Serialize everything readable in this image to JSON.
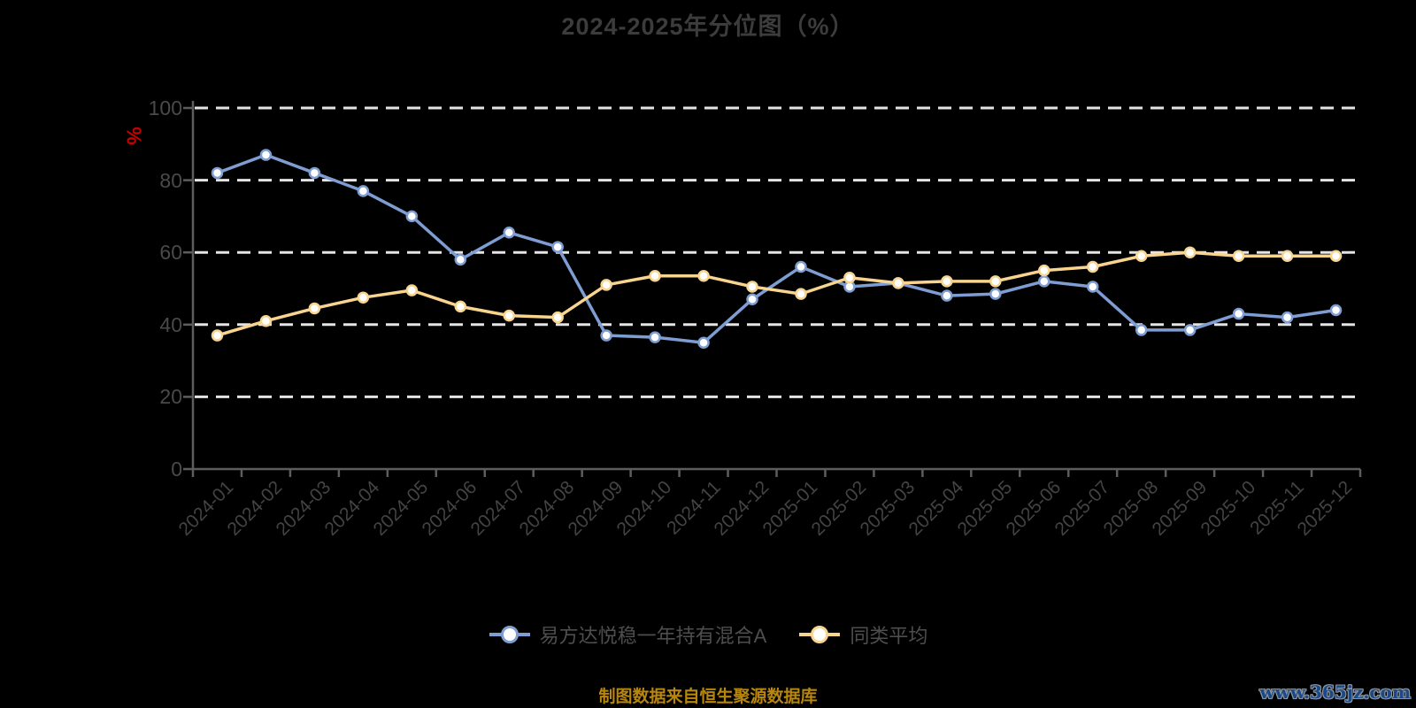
{
  "title": "2024-2025年分位图（%）",
  "y_axis": {
    "name": "%",
    "ticks": [
      0,
      20,
      40,
      60,
      80,
      100
    ],
    "max": 100
  },
  "legend": [
    {
      "label": "易方达悦稳一年持有混合A",
      "color": "#7E9ED3"
    },
    {
      "label": "同类平均",
      "color": "#F8D48E"
    }
  ],
  "footer": {
    "source_text": "制图数据来自恒生聚源数据库",
    "watermark": "www.365jz.com"
  },
  "colors": {
    "background": "#000000",
    "title_text": "#3c3c3c",
    "axis_line": "#5d5d5d",
    "axis_label": "#4a4a4a",
    "gridline": "#e4e4e4",
    "series_blue": "#7E9ED3",
    "series_yellow": "#F8D48E",
    "point_fill": "#ffffff",
    "y_axis_name_text": "#c80000",
    "footer_text": "#b8860b",
    "watermark_text": "#1b4886"
  },
  "chart_data": {
    "type": "line",
    "title": "2024-2025年分位图（%）",
    "ylabel": "%",
    "xlabel": "",
    "ylim": [
      0,
      100
    ],
    "yticks": [
      0,
      20,
      40,
      60,
      80,
      100
    ],
    "grid": "horizontal-dashed-white",
    "legend_position": "bottom",
    "x_label_rotation": 45,
    "categories": [
      "2024-01",
      "2024-02",
      "2024-03",
      "2024-04",
      "2024-05",
      "2024-06",
      "2024-07",
      "2024-08",
      "2024-09",
      "2024-10",
      "2024-11",
      "2024-12",
      "2025-01",
      "2025-02",
      "2025-03",
      "2025-04",
      "2025-05",
      "2025-06",
      "2025-07",
      "2025-08",
      "2025-09",
      "2025-10",
      "2025-11",
      "2025-12"
    ],
    "series": [
      {
        "name": "易方达悦稳一年持有混合A",
        "color": "#7E9ED3",
        "values": [
          82,
          87,
          82,
          77,
          70,
          58,
          65.5,
          61.5,
          37,
          36.5,
          35,
          47,
          56,
          50.5,
          51.5,
          48,
          48.5,
          52,
          50.5,
          38.5,
          38.5,
          43,
          42,
          44
        ]
      },
      {
        "name": "同类平均",
        "color": "#F8D48E",
        "values": [
          37,
          41,
          44.5,
          47.5,
          49.5,
          45,
          42.5,
          42,
          51,
          53.5,
          53.5,
          50.5,
          48.5,
          53,
          51.5,
          52,
          52,
          55,
          56,
          59,
          60,
          59,
          59,
          59
        ]
      }
    ]
  }
}
